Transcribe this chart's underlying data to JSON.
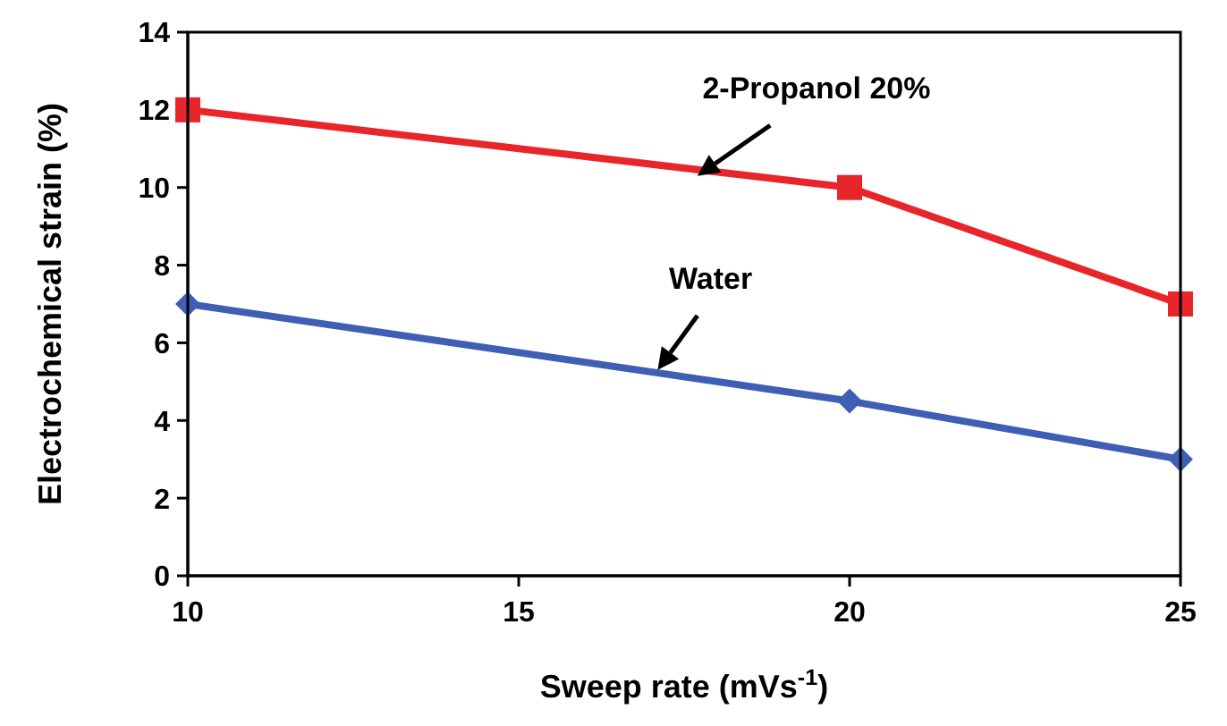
{
  "chart_data": {
    "type": "line",
    "xlabel": "Sweep rate (mVs$^{-1}$)",
    "ylabel": "Electrochemical strain (%)",
    "x": [
      10,
      20,
      25
    ],
    "series": [
      {
        "name": "2-Propanol 20%",
        "color": "#e8262a",
        "values": [
          12,
          10,
          7
        ],
        "marker": "square"
      },
      {
        "name": "Water",
        "color": "#3f5fb5",
        "values": [
          7,
          4.5,
          3
        ],
        "marker": "diamond"
      }
    ],
    "xlim": [
      10,
      25
    ],
    "xticks": [
      10,
      15,
      20,
      25
    ],
    "ylim": [
      0,
      14
    ],
    "yticks": [
      0,
      2,
      4,
      6,
      8,
      10,
      12,
      14
    ],
    "grid": false,
    "legend": false,
    "line_style": "solid"
  }
}
